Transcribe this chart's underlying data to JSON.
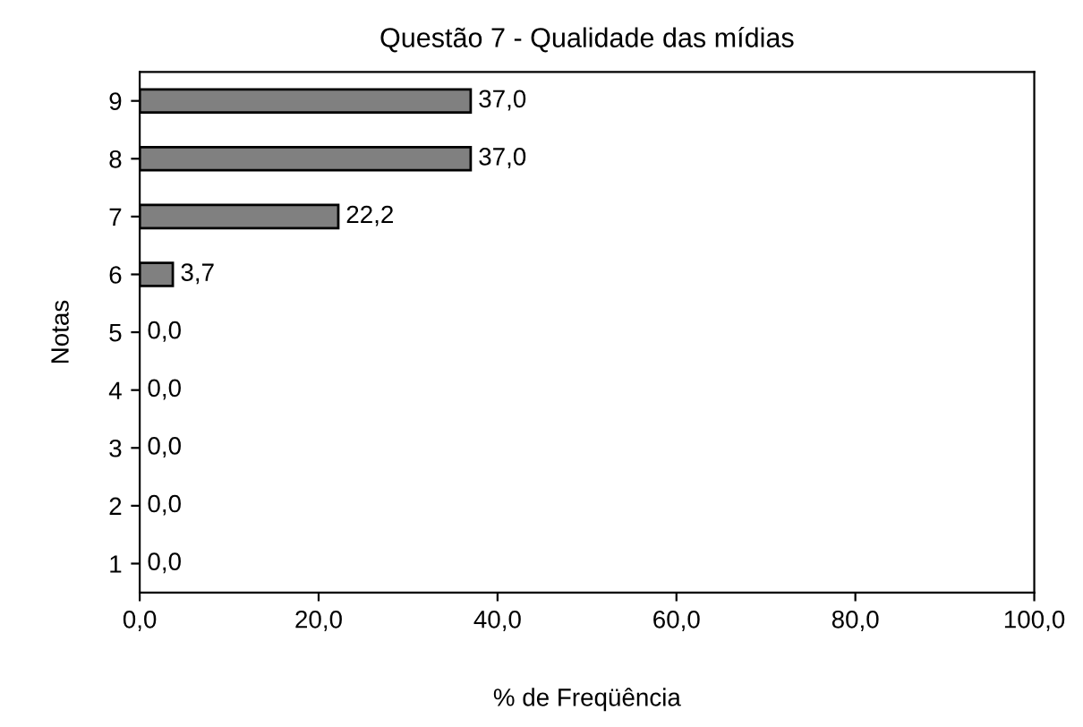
{
  "chart_data": {
    "type": "bar",
    "orientation": "horizontal",
    "title": "Questão 7 - Qualidade das mídias",
    "xlabel": "% de Freqüência",
    "ylabel": "Notas",
    "categories": [
      "9",
      "8",
      "7",
      "6",
      "5",
      "4",
      "3",
      "2",
      "1"
    ],
    "values": [
      37.0,
      37.0,
      22.2,
      3.7,
      0.0,
      0.0,
      0.0,
      0.0,
      0.0
    ],
    "value_labels": [
      "37,0",
      "37,0",
      "22,2",
      "3,7",
      "0,0",
      "0,0",
      "0,0",
      "0,0",
      "0,0"
    ],
    "color": "#808080",
    "xlim": [
      0,
      100
    ],
    "xticks": [
      {
        "value": 0,
        "label": "0,0"
      },
      {
        "value": 20,
        "label": "20,0"
      },
      {
        "value": 40,
        "label": "40,0"
      },
      {
        "value": 60,
        "label": "60,0"
      },
      {
        "value": 80,
        "label": "80,0"
      },
      {
        "value": 100,
        "label": "100,0"
      }
    ],
    "grid": false,
    "legend": false
  }
}
